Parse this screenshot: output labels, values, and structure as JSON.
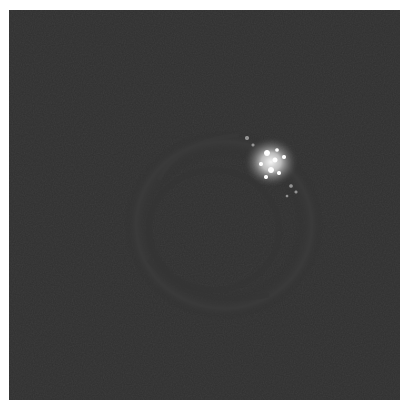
{
  "image": {
    "description_free": true,
    "colors": {
      "background": "#2e2e2e",
      "ring": "#3a3a3a",
      "highlight": "#ffffff"
    },
    "icon": "grayscale-photo-icon"
  }
}
